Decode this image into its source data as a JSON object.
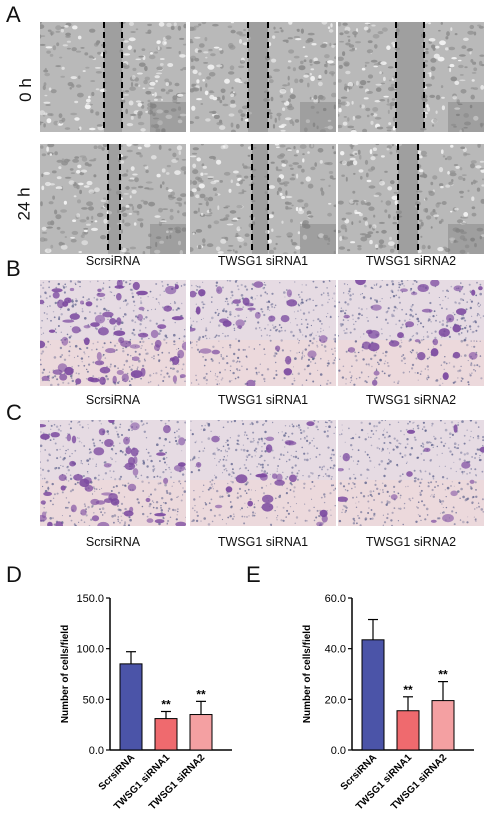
{
  "panels": {
    "a": "A",
    "b": "B",
    "c": "C",
    "d": "D",
    "e": "E"
  },
  "rows": {
    "t0": "0 h",
    "t24": "24 h"
  },
  "conditions": [
    "ScrsiRNA",
    "TWSG1 siRNA1",
    "TWSG1 siRNA2"
  ],
  "colors": {
    "scr": "#4b54a8",
    "si1": "#ef6a6e",
    "si2": "#f4a0a2",
    "stain": "#7c4aa0",
    "wound": "#8a8a8a"
  },
  "chart_data": [
    {
      "id": "D",
      "type": "bar",
      "categories": [
        "ScrsiRNA",
        "TWSG1 siRNA1",
        "TWSG1 siRNA2"
      ],
      "values": [
        85,
        31,
        35
      ],
      "errors": [
        12,
        7,
        13
      ],
      "significance": [
        "",
        "**",
        "**"
      ],
      "ylabel": "Number of cells/field",
      "ylim": [
        0,
        150
      ],
      "yticks": [
        "0.0",
        "50.0",
        "100.0",
        "150.0"
      ],
      "yticks_values": [
        0,
        50,
        100,
        150
      ]
    },
    {
      "id": "E",
      "type": "bar",
      "categories": [
        "ScrsiRNA",
        "TWSG1 siRNA1",
        "TWSG1 siRNA2"
      ],
      "values": [
        43.5,
        15.5,
        19.5
      ],
      "errors": [
        8,
        5.5,
        7.5
      ],
      "significance": [
        "",
        "**",
        "**"
      ],
      "ylabel": "Number of cells/field",
      "ylim": [
        0,
        60
      ],
      "yticks": [
        "0.0",
        "20.0",
        "40.0",
        "60.0"
      ],
      "yticks_values": [
        0,
        20,
        40,
        60
      ]
    }
  ]
}
